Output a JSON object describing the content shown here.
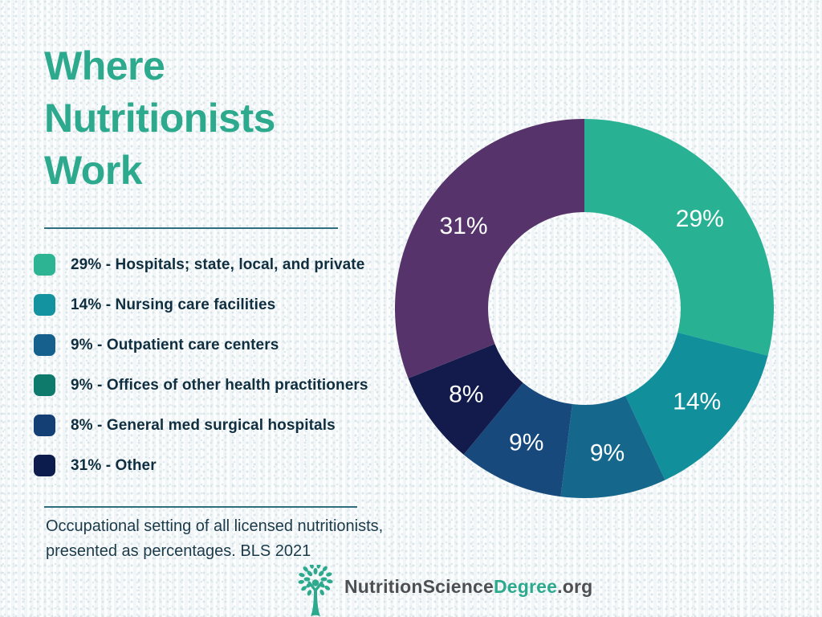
{
  "title": "Where Nutritionists Work",
  "legend": {
    "items": [
      {
        "label": "29% - Hospitals; state, local, and private",
        "color": "#2cb493"
      },
      {
        "label": "14% - Nursing care facilities",
        "color": "#13929f"
      },
      {
        "label": "9% - Outpatient care centers",
        "color": "#15608c"
      },
      {
        "label": "9% - Offices of other health practitioners",
        "color": "#0d7a6c"
      },
      {
        "label": "8% - General med surgical hospitals",
        "color": "#133f75"
      },
      {
        "label": "31% - Other",
        "color": "#0c1c4d"
      }
    ]
  },
  "footnote": {
    "line1": "Occupational setting of all licensed nutritionists,",
    "line2": "presented as percentages. BLS 2021"
  },
  "logo": {
    "icon": "tree-person-icon",
    "text_primary": "NutritionScience",
    "text_accent": "Degree",
    "text_suffix": ".org"
  },
  "colors": {
    "accent": "#2daa8e",
    "legend_text": "#0f2e3f",
    "footnote_text": "#1b3a4a",
    "divider": "#2f6e7f",
    "logo_text": "#4d4f52",
    "donut_label": "#ffffff"
  },
  "chart_data": {
    "type": "donut",
    "title": "Where Nutritionists Work",
    "unit": "percent",
    "source": "BLS 2021",
    "start_angle_deg": 0,
    "direction": "clockwise",
    "inner_radius_ratio": 0.508,
    "legend_position": "left",
    "slices": [
      {
        "label": "Hospitals; state, local, and private",
        "value": 29,
        "display": "29%",
        "color": "#28b293"
      },
      {
        "label": "Nursing care facilities",
        "value": 14,
        "display": "14%",
        "color": "#11909c"
      },
      {
        "label": "Outpatient care centers",
        "value": 9,
        "display": "9%",
        "color": "#15688c"
      },
      {
        "label": "Offices of other health practitioners",
        "value": 9,
        "display": "9%",
        "color": "#17497c"
      },
      {
        "label": "General med surgical hospitals",
        "value": 8,
        "display": "8%",
        "color": "#121b4b"
      },
      {
        "label": "Other",
        "value": 31,
        "display": "31%",
        "color": "#56346b"
      }
    ]
  }
}
